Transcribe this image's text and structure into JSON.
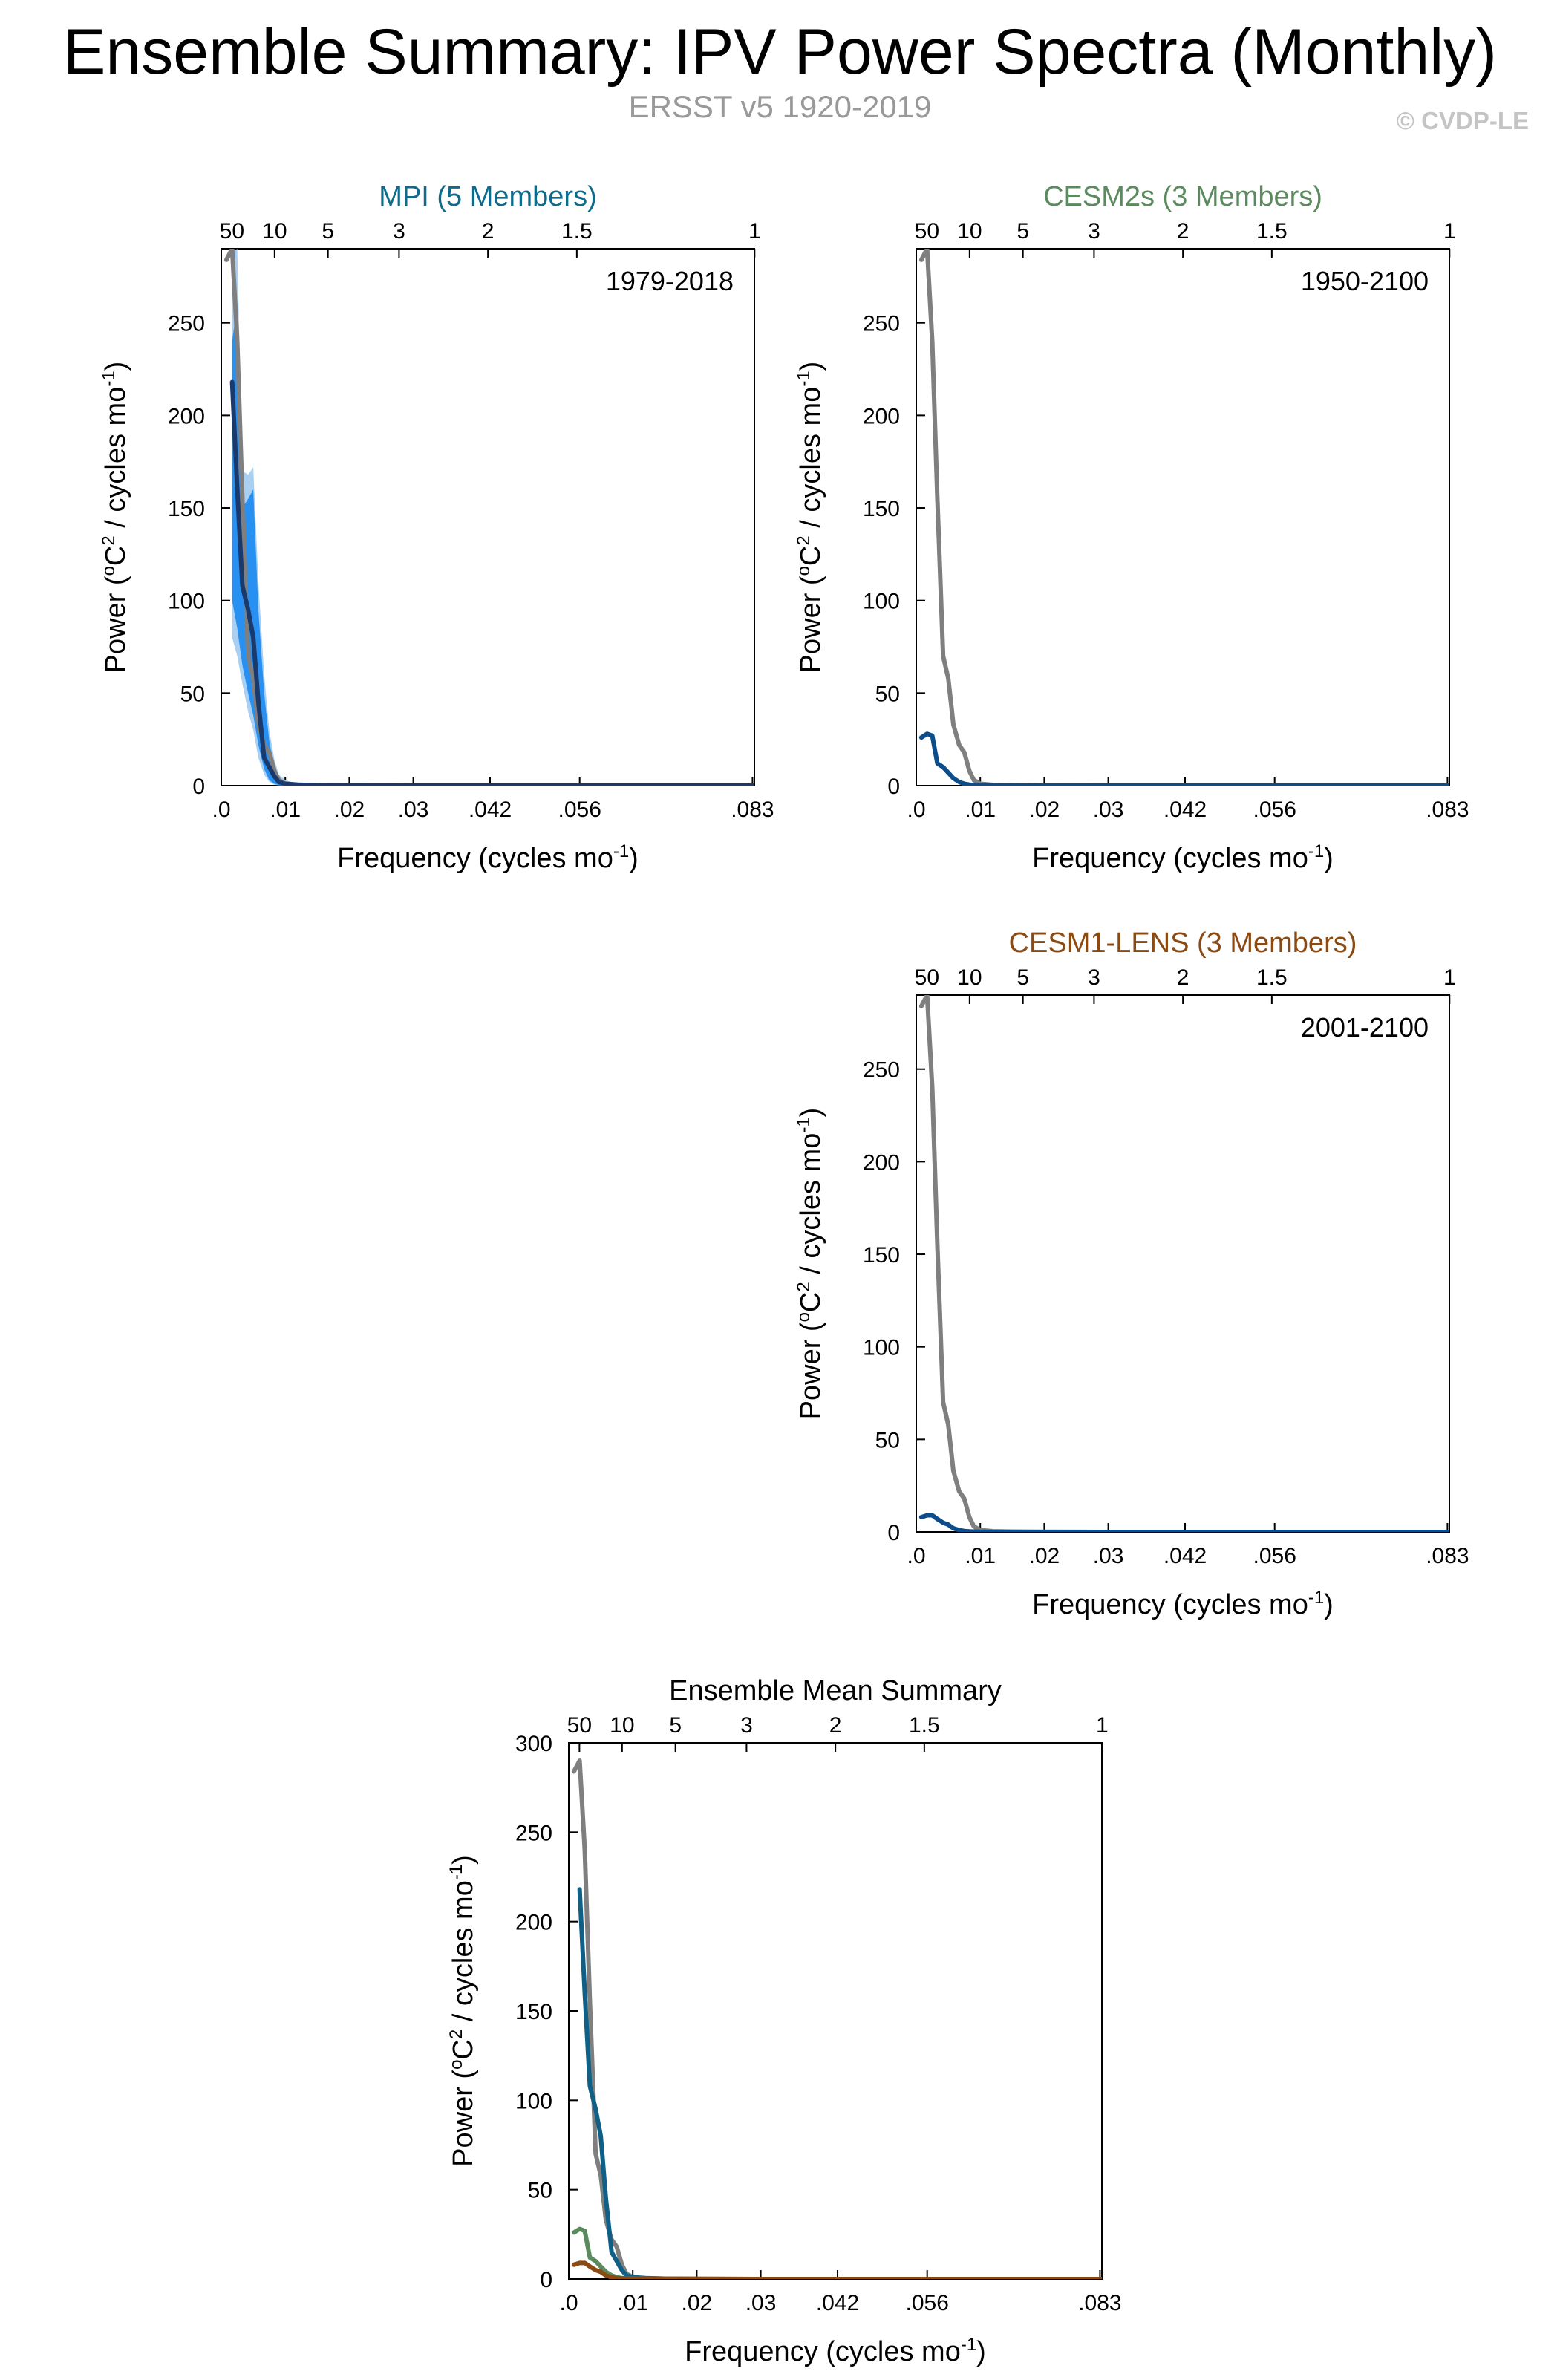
{
  "title": "Ensemble Summary: IPV Power Spectra (Monthly)",
  "subtitle": "ERSST v5 1920-2019",
  "copyright": "© CVDP-LE",
  "colors": {
    "obs": "#7f7f7f",
    "mpi": "#0f5f86",
    "mpi_mean": "#1a3a6e",
    "mpi_spread_inner": "#2790f0",
    "mpi_spread_outer": "#a9cff2",
    "cesm2": "#5b8a5e",
    "cesm2_line": "#0d4d8a",
    "cesm1": "#8a4a12",
    "cesm1_line": "#0d4d8a"
  },
  "chart_data": [
    {
      "id": "mpi",
      "type": "line",
      "title": "MPI (5 Members)",
      "title_color": "#0f6b8c",
      "period_label": "1979-2018",
      "xlabel": "Frequency (cycles mo",
      "xlabel_sup": "-1",
      "xlabel_end": ")",
      "ylabel": "Power (",
      "ylabel_sup1": "o",
      "ylabel_mid": "C",
      "ylabel_sup2": "2",
      "ylabel_mid2": " / cycles mo",
      "ylabel_sup3": "-1",
      "ylabel_end": ")",
      "xlim": [
        0,
        0.0833
      ],
      "ylim": [
        0,
        290
      ],
      "xticks": [
        0.0,
        0.01,
        0.02,
        0.03,
        0.042,
        0.056,
        0.083
      ],
      "xtick_labels": [
        ".0",
        ".01",
        ".02",
        ".03",
        ".042",
        ".056",
        ".083"
      ],
      "yticks": [
        0,
        50,
        100,
        150,
        200,
        250
      ],
      "ytick_labels": [
        "0",
        "50",
        "100",
        "150",
        "200",
        "250"
      ],
      "period_ticks": [
        50,
        10,
        5,
        3,
        2,
        1.5,
        1
      ],
      "period_tick_labels": [
        "50",
        "10",
        "5",
        "3",
        "2",
        "1.5",
        "1"
      ],
      "spread_outer": {
        "x": [
          0.0017,
          0.0025,
          0.0033,
          0.0042,
          0.005,
          0.0058,
          0.0067,
          0.0075,
          0.0083,
          0.009,
          0.01,
          0.012,
          0.02,
          0.0833
        ],
        "upper": [
          288,
          290,
          170,
          168,
          172,
          110,
          60,
          30,
          14,
          6,
          3,
          1,
          0.3,
          0
        ],
        "lower": [
          80,
          70,
          55,
          40,
          30,
          15,
          6,
          2,
          0.5,
          0.2,
          0,
          0,
          0,
          0
        ]
      },
      "spread_inner": {
        "x": [
          0.0017,
          0.0025,
          0.0033,
          0.0042,
          0.005,
          0.0058,
          0.0067,
          0.0075,
          0.0083,
          0.009,
          0.01,
          0.012,
          0.02,
          0.0833
        ],
        "upper": [
          240,
          260,
          150,
          155,
          160,
          95,
          50,
          24,
          10,
          4,
          2,
          0.8,
          0.2,
          0
        ],
        "lower": [
          100,
          85,
          65,
          50,
          38,
          22,
          9,
          3,
          1,
          0.3,
          0,
          0,
          0,
          0
        ]
      },
      "series": [
        {
          "role": "obs",
          "x": [
            0.0008,
            0.0017,
            0.0025,
            0.0033,
            0.0042,
            0.005,
            0.0058,
            0.0067,
            0.0075,
            0.0083,
            0.009,
            0.01,
            0.012,
            0.015,
            0.02,
            0.03,
            0.0833
          ],
          "values": [
            284,
            290,
            240,
            155,
            70,
            58,
            33,
            22,
            18,
            8,
            3,
            1,
            0.4,
            0.2,
            0.1,
            0,
            0
          ]
        },
        {
          "role": "mpi_mean",
          "x": [
            0.0017,
            0.0025,
            0.0033,
            0.0042,
            0.005,
            0.0058,
            0.0067,
            0.0075,
            0.0083,
            0.009,
            0.01,
            0.012,
            0.015,
            0.02,
            0.03,
            0.0833
          ],
          "values": [
            218,
            160,
            108,
            95,
            80,
            45,
            15,
            10,
            5,
            2,
            1,
            0.5,
            0.2,
            0.1,
            0,
            0
          ]
        }
      ]
    },
    {
      "id": "cesm2",
      "type": "line",
      "title": "CESM2s (3 Members)",
      "title_color": "#5b8a5e",
      "period_label": "1950-2100",
      "xlabel": "Frequency (cycles mo",
      "xlabel_sup": "-1",
      "xlabel_end": ")",
      "ylabel": "Power (",
      "ylabel_sup1": "o",
      "ylabel_mid": "C",
      "ylabel_sup2": "2",
      "ylabel_mid2": " / cycles mo",
      "ylabel_sup3": "-1",
      "ylabel_end": ")",
      "xlim": [
        0,
        0.0833
      ],
      "ylim": [
        0,
        290
      ],
      "xticks": [
        0.0,
        0.01,
        0.02,
        0.03,
        0.042,
        0.056,
        0.083
      ],
      "xtick_labels": [
        ".0",
        ".01",
        ".02",
        ".03",
        ".042",
        ".056",
        ".083"
      ],
      "yticks": [
        0,
        50,
        100,
        150,
        200,
        250
      ],
      "ytick_labels": [
        "0",
        "50",
        "100",
        "150",
        "200",
        "250"
      ],
      "period_ticks": [
        50,
        10,
        5,
        3,
        2,
        1.5,
        1
      ],
      "period_tick_labels": [
        "50",
        "10",
        "5",
        "3",
        "2",
        "1.5",
        "1"
      ],
      "series": [
        {
          "role": "obs",
          "x": [
            0.0008,
            0.0017,
            0.0025,
            0.0033,
            0.0042,
            0.005,
            0.0058,
            0.0067,
            0.0075,
            0.0083,
            0.009,
            0.01,
            0.012,
            0.015,
            0.02,
            0.03,
            0.0833
          ],
          "values": [
            284,
            290,
            240,
            155,
            70,
            58,
            33,
            22,
            18,
            8,
            3,
            1,
            0.4,
            0.2,
            0.1,
            0,
            0
          ]
        },
        {
          "role": "cesm2_line",
          "x": [
            0.0008,
            0.0017,
            0.0025,
            0.0033,
            0.0042,
            0.005,
            0.0058,
            0.0067,
            0.0075,
            0.0083,
            0.009,
            0.01,
            0.012,
            0.02,
            0.0833
          ],
          "values": [
            26,
            28,
            27,
            12,
            10,
            7,
            4,
            2,
            1,
            0.5,
            0.3,
            0.2,
            0.1,
            0,
            0
          ]
        }
      ]
    },
    {
      "id": "cesm1",
      "type": "line",
      "title": "CESM1-LENS (3 Members)",
      "title_color": "#8a4a12",
      "period_label": "2001-2100",
      "xlabel": "Frequency (cycles mo",
      "xlabel_sup": "-1",
      "xlabel_end": ")",
      "ylabel": "Power (",
      "ylabel_sup1": "o",
      "ylabel_mid": "C",
      "ylabel_sup2": "2",
      "ylabel_mid2": " / cycles mo",
      "ylabel_sup3": "-1",
      "ylabel_end": ")",
      "xlim": [
        0,
        0.0833
      ],
      "ylim": [
        0,
        290
      ],
      "xticks": [
        0.0,
        0.01,
        0.02,
        0.03,
        0.042,
        0.056,
        0.083
      ],
      "xtick_labels": [
        ".0",
        ".01",
        ".02",
        ".03",
        ".042",
        ".056",
        ".083"
      ],
      "yticks": [
        0,
        50,
        100,
        150,
        200,
        250
      ],
      "ytick_labels": [
        "0",
        "50",
        "100",
        "150",
        "200",
        "250"
      ],
      "period_ticks": [
        50,
        10,
        5,
        3,
        2,
        1.5,
        1
      ],
      "period_tick_labels": [
        "50",
        "10",
        "5",
        "3",
        "2",
        "1.5",
        "1"
      ],
      "series": [
        {
          "role": "obs",
          "x": [
            0.0008,
            0.0017,
            0.0025,
            0.0033,
            0.0042,
            0.005,
            0.0058,
            0.0067,
            0.0075,
            0.0083,
            0.009,
            0.01,
            0.012,
            0.015,
            0.02,
            0.03,
            0.0833
          ],
          "values": [
            284,
            290,
            240,
            155,
            70,
            58,
            33,
            22,
            18,
            8,
            3,
            1,
            0.4,
            0.2,
            0.1,
            0,
            0
          ]
        },
        {
          "role": "cesm1_line",
          "x": [
            0.0008,
            0.0017,
            0.0025,
            0.0033,
            0.0042,
            0.005,
            0.0058,
            0.0067,
            0.0075,
            0.0083,
            0.009,
            0.01,
            0.012,
            0.02,
            0.0833
          ],
          "values": [
            8,
            9,
            9,
            7,
            5,
            4,
            2,
            1,
            0.5,
            0.3,
            0.2,
            0.1,
            0,
            0,
            0
          ]
        }
      ]
    },
    {
      "id": "ensmean",
      "type": "line",
      "title": "Ensemble Mean Summary",
      "title_color": "#000000",
      "period_label": "",
      "xlabel": "Frequency (cycles mo",
      "xlabel_sup": "-1",
      "xlabel_end": ")",
      "ylabel": "Power (",
      "ylabel_sup1": "o",
      "ylabel_mid": "C",
      "ylabel_sup2": "2",
      "ylabel_mid2": " / cycles mo",
      "ylabel_sup3": "-1",
      "ylabel_end": ")",
      "xlim": [
        0,
        0.0833
      ],
      "ylim": [
        0,
        300
      ],
      "xticks": [
        0.0,
        0.01,
        0.02,
        0.03,
        0.042,
        0.056,
        0.083
      ],
      "xtick_labels": [
        ".0",
        ".01",
        ".02",
        ".03",
        ".042",
        ".056",
        ".083"
      ],
      "yticks": [
        0,
        50,
        100,
        150,
        200,
        250,
        300
      ],
      "ytick_labels": [
        "0",
        "50",
        "100",
        "150",
        "200",
        "250",
        "300"
      ],
      "period_ticks": [
        50,
        10,
        5,
        3,
        2,
        1.5,
        1
      ],
      "period_tick_labels": [
        "50",
        "10",
        "5",
        "3",
        "2",
        "1.5",
        "1"
      ],
      "series": [
        {
          "role": "obs",
          "x": [
            0.0008,
            0.0017,
            0.0025,
            0.0033,
            0.0042,
            0.005,
            0.0058,
            0.0067,
            0.0075,
            0.0083,
            0.009,
            0.01,
            0.012,
            0.015,
            0.02,
            0.03,
            0.0833
          ],
          "values": [
            284,
            290,
            240,
            155,
            70,
            58,
            33,
            22,
            18,
            8,
            3,
            1,
            0.4,
            0.2,
            0.1,
            0,
            0
          ]
        },
        {
          "role": "mpi",
          "x": [
            0.0017,
            0.0025,
            0.0033,
            0.0042,
            0.005,
            0.0058,
            0.0067,
            0.0075,
            0.0083,
            0.009,
            0.01,
            0.012,
            0.015,
            0.02,
            0.03,
            0.0833
          ],
          "values": [
            218,
            160,
            108,
            95,
            80,
            45,
            15,
            10,
            5,
            2,
            1,
            0.5,
            0.2,
            0.1,
            0,
            0
          ]
        },
        {
          "role": "cesm2",
          "x": [
            0.0008,
            0.0017,
            0.0025,
            0.0033,
            0.0042,
            0.005,
            0.0058,
            0.0067,
            0.0075,
            0.0083,
            0.009,
            0.01,
            0.012,
            0.02,
            0.0833
          ],
          "values": [
            26,
            28,
            27,
            12,
            10,
            7,
            4,
            2,
            1,
            0.5,
            0.3,
            0.2,
            0.1,
            0,
            0
          ]
        },
        {
          "role": "cesm1",
          "x": [
            0.0008,
            0.0017,
            0.0025,
            0.0033,
            0.0042,
            0.005,
            0.0058,
            0.0067,
            0.0075,
            0.0083,
            0.009,
            0.01,
            0.012,
            0.02,
            0.0833
          ],
          "values": [
            8,
            9,
            9,
            7,
            5,
            4,
            2,
            1,
            0.5,
            0.3,
            0.2,
            0.1,
            0,
            0,
            0
          ]
        }
      ]
    }
  ]
}
